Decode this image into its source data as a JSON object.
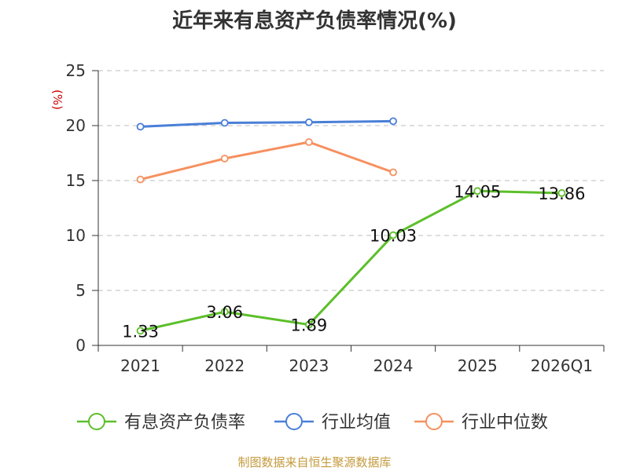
{
  "chart_data": {
    "type": "line",
    "title": "近年来有息资产负债率情况(%)",
    "ylabel": "(%)",
    "xlabel": "",
    "categories": [
      "2021",
      "2022",
      "2023",
      "2024",
      "2025",
      "2026Q1"
    ],
    "yticks": [
      "0",
      "5",
      "10",
      "15",
      "20",
      "25"
    ],
    "ylim": [
      0,
      25
    ],
    "grid": true,
    "legend_position": "bottom",
    "series": [
      {
        "name": "有息资产负债率",
        "values": [
          1.33,
          3.06,
          1.89,
          10.03,
          14.05,
          13.86
        ],
        "labels": [
          "1.33",
          "3.06",
          "1.89",
          "10.03",
          "14.05",
          "13.86"
        ],
        "color": "#5cbf2a"
      },
      {
        "name": "行业均值",
        "values": [
          19.9,
          20.25,
          20.3,
          20.4,
          null,
          null
        ],
        "color": "#4a7fd8"
      },
      {
        "name": "行业中位数",
        "values": [
          15.1,
          17.0,
          18.5,
          15.75,
          null,
          null
        ],
        "color": "#f6905e"
      }
    ]
  },
  "footer": {
    "source": "制图数据来自恒生聚源数据库"
  }
}
